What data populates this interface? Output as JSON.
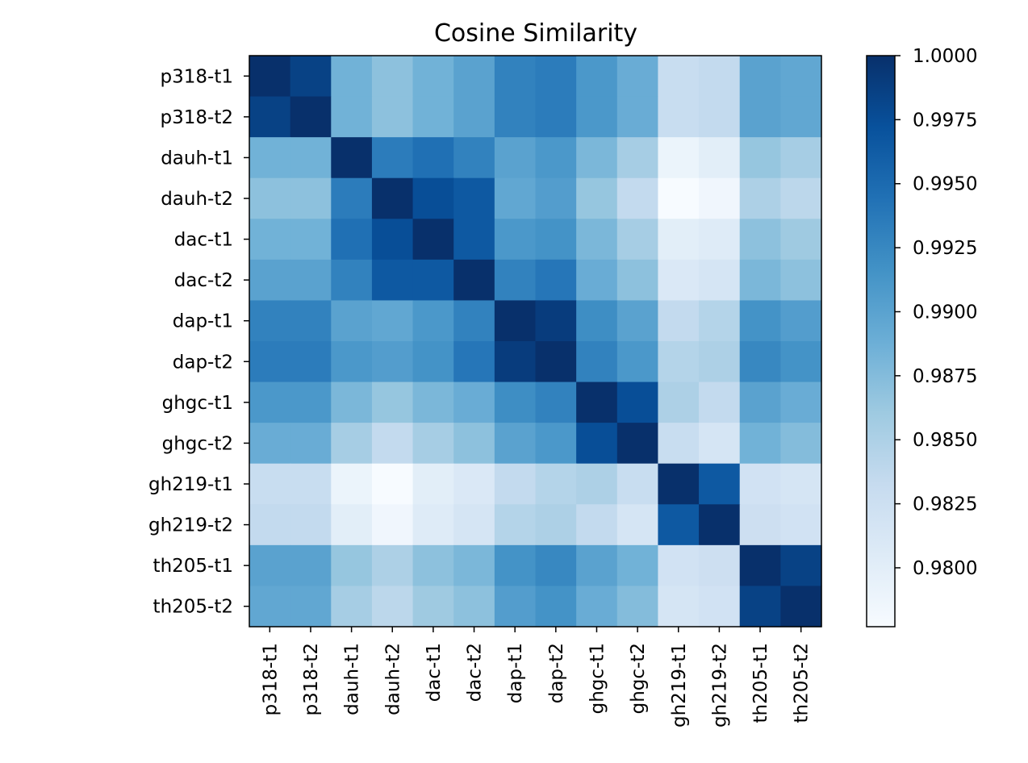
{
  "chart_data": {
    "type": "heatmap",
    "title": "Cosine Similarity",
    "xlabel": "",
    "ylabel": "",
    "labels": [
      "p318-t1",
      "p318-t2",
      "dauh-t1",
      "dauh-t2",
      "dac-t1",
      "dac-t2",
      "dap-t1",
      "dap-t2",
      "ghgc-t1",
      "ghgc-t2",
      "gh219-t1",
      "gh219-t2",
      "th205-t1",
      "th205-t2"
    ],
    "matrix": [
      [
        1.0,
        0.9985,
        0.9885,
        0.987,
        0.9885,
        0.99,
        0.993,
        0.9935,
        0.991,
        0.989,
        0.983,
        0.9835,
        0.99,
        0.9895
      ],
      [
        0.9985,
        1.0,
        0.9885,
        0.987,
        0.9885,
        0.99,
        0.993,
        0.9935,
        0.991,
        0.989,
        0.983,
        0.9835,
        0.99,
        0.9895
      ],
      [
        0.9885,
        0.9885,
        1.0,
        0.9935,
        0.9945,
        0.993,
        0.99,
        0.991,
        0.988,
        0.9855,
        0.979,
        0.98,
        0.9865,
        0.9855
      ],
      [
        0.987,
        0.987,
        0.9935,
        1.0,
        0.9975,
        0.9965,
        0.9895,
        0.9905,
        0.9865,
        0.9835,
        0.9775,
        0.9785,
        0.985,
        0.984
      ],
      [
        0.9885,
        0.9885,
        0.9945,
        0.9975,
        1.0,
        0.9965,
        0.991,
        0.9915,
        0.988,
        0.9855,
        0.98,
        0.9805,
        0.987,
        0.986
      ],
      [
        0.99,
        0.99,
        0.993,
        0.9965,
        0.9965,
        1.0,
        0.993,
        0.994,
        0.989,
        0.987,
        0.981,
        0.9815,
        0.988,
        0.987
      ],
      [
        0.993,
        0.993,
        0.99,
        0.9895,
        0.991,
        0.993,
        1.0,
        0.999,
        0.992,
        0.99,
        0.9835,
        0.9845,
        0.9915,
        0.9905
      ],
      [
        0.9935,
        0.9935,
        0.991,
        0.9905,
        0.9915,
        0.994,
        0.999,
        1.0,
        0.993,
        0.991,
        0.9845,
        0.985,
        0.9925,
        0.9915
      ],
      [
        0.991,
        0.991,
        0.988,
        0.9865,
        0.988,
        0.989,
        0.992,
        0.993,
        1.0,
        0.9975,
        0.985,
        0.9835,
        0.99,
        0.989
      ],
      [
        0.989,
        0.989,
        0.9855,
        0.9835,
        0.9855,
        0.987,
        0.99,
        0.991,
        0.9975,
        1.0,
        0.983,
        0.9815,
        0.9885,
        0.9875
      ],
      [
        0.983,
        0.983,
        0.979,
        0.9775,
        0.98,
        0.981,
        0.9835,
        0.9845,
        0.985,
        0.983,
        1.0,
        0.9965,
        0.982,
        0.9815
      ],
      [
        0.9835,
        0.9835,
        0.98,
        0.9785,
        0.9805,
        0.9815,
        0.9845,
        0.985,
        0.9835,
        0.9815,
        0.9965,
        1.0,
        0.9825,
        0.982
      ],
      [
        0.99,
        0.99,
        0.9865,
        0.985,
        0.987,
        0.988,
        0.9915,
        0.9925,
        0.99,
        0.9885,
        0.982,
        0.9825,
        1.0,
        0.9985
      ],
      [
        0.9895,
        0.9895,
        0.9855,
        0.984,
        0.986,
        0.987,
        0.9905,
        0.9915,
        0.989,
        0.9875,
        0.9815,
        0.982,
        0.9985,
        1.0
      ]
    ],
    "colormap": "Blues",
    "colorbar": {
      "vmin": 0.9777,
      "vmax": 1.0,
      "ticks": [
        1.0,
        0.9975,
        0.995,
        0.9925,
        0.99,
        0.9875,
        0.985,
        0.9825,
        0.98
      ],
      "tick_labels": [
        "1.0000",
        "0.9975",
        "0.9950",
        "0.9925",
        "0.9900",
        "0.9875",
        "0.9850",
        "0.9825",
        "0.9800"
      ]
    },
    "grid": false
  }
}
